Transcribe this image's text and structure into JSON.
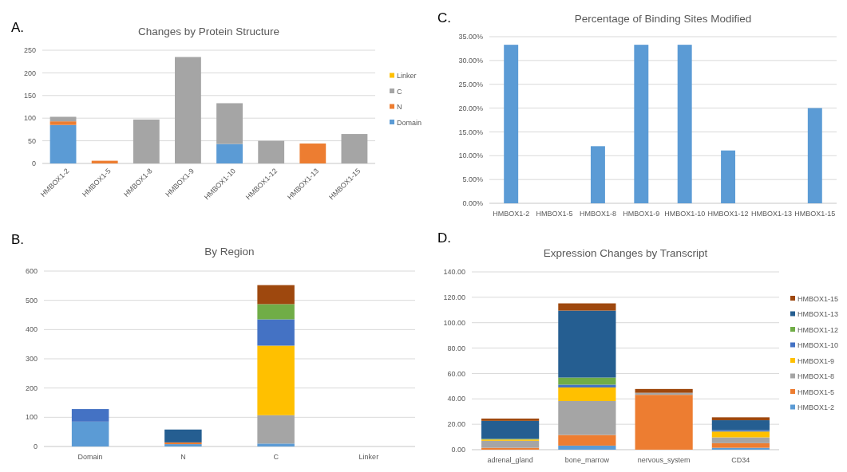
{
  "chart_data": [
    {
      "type": "bar",
      "title": "Changes by Protein Structure",
      "annotations": [
        "A."
      ],
      "stacked": true,
      "grid": "y",
      "legend": "right",
      "categories": [
        "HMBOX1-2",
        "HMBOX1-5",
        "HMBOX1-8",
        "HMBOX1-9",
        "HMBOX1-10",
        "HMBOX1-12",
        "HMBOX1-13",
        "HMBOX1-15"
      ],
      "ylim": [
        0,
        250
      ],
      "yticks": [
        0,
        50,
        100,
        150,
        200,
        250
      ],
      "series": [
        {
          "name": "Domain",
          "color": "#5b9bd5",
          "values": [
            85,
            0,
            0,
            0,
            43,
            0,
            0,
            0
          ]
        },
        {
          "name": "N",
          "color": "#ed7d31",
          "values": [
            8,
            6,
            0,
            0,
            0,
            0,
            44,
            0
          ]
        },
        {
          "name": "C",
          "color": "#a5a5a5",
          "values": [
            10,
            0,
            97,
            235,
            90,
            50,
            0,
            65
          ]
        },
        {
          "name": "Linker",
          "color": "#ffc000",
          "values": [
            0,
            0,
            0,
            0,
            0,
            0,
            0,
            0
          ]
        }
      ]
    },
    {
      "type": "bar",
      "title": "By Region",
      "annotations": [
        "B."
      ],
      "stacked": true,
      "grid": "y",
      "categories": [
        "Domain",
        "N",
        "C",
        "Linker"
      ],
      "ylim": [
        0,
        600
      ],
      "yticks": [
        0,
        100,
        200,
        300,
        400,
        500,
        600
      ],
      "series": [
        {
          "color": "#5b9bd5",
          "values": [
            85,
            8,
            10,
            0
          ]
        },
        {
          "color": "#ed7d31",
          "values": [
            0,
            6,
            0,
            0
          ]
        },
        {
          "color": "#a5a5a5",
          "values": [
            0,
            0,
            97,
            0
          ]
        },
        {
          "color": "#ffc000",
          "values": [
            0,
            0,
            238,
            0
          ]
        },
        {
          "color": "#4472c4",
          "values": [
            43,
            0,
            90,
            0
          ]
        },
        {
          "color": "#70ad47",
          "values": [
            0,
            0,
            52,
            0
          ]
        },
        {
          "color": "#255e91",
          "values": [
            0,
            44,
            0,
            0
          ]
        },
        {
          "color": "#9e480e",
          "values": [
            0,
            0,
            65,
            0
          ]
        }
      ]
    },
    {
      "type": "bar",
      "title": "Percentage of Binding Sites Modified",
      "annotations": [
        "C."
      ],
      "grid": "y",
      "categories": [
        "HMBOX1-2",
        "HMBOX1-5",
        "HMBOX1-8",
        "HMBOX1-9",
        "HMBOX1-10",
        "HMBOX1-12",
        "HMBOX1-13",
        "HMBOX1-15"
      ],
      "values": [
        33.3,
        0,
        12,
        33.3,
        33.3,
        11.1,
        0,
        20
      ],
      "color": "#5b9bd5",
      "ylim": [
        0,
        35
      ],
      "yticks": [
        {
          "value": 0,
          "label": "0.00%"
        },
        {
          "value": 5,
          "label": "5.00%"
        },
        {
          "value": 10,
          "label": "10.00%"
        },
        {
          "value": 15,
          "label": "15.00%"
        },
        {
          "value": 20,
          "label": "20.00%"
        },
        {
          "value": 25,
          "label": "25.00%"
        },
        {
          "value": 30,
          "label": "30.00%"
        },
        {
          "value": 35,
          "label": "35.00%"
        }
      ]
    },
    {
      "type": "bar",
      "title": "Expression Changes by Transcript",
      "annotations": [
        "D."
      ],
      "stacked": true,
      "grid": "y",
      "legend": "right",
      "categories": [
        "adrenal_gland",
        "bone_marrow",
        "nervous_system",
        "CD34"
      ],
      "ylim": [
        0,
        140
      ],
      "yticks": [
        {
          "value": 0,
          "label": "0.00"
        },
        {
          "value": 20,
          "label": "20.00"
        },
        {
          "value": 40,
          "label": "40.00"
        },
        {
          "value": 60,
          "label": "60.00"
        },
        {
          "value": 80,
          "label": "80.00"
        },
        {
          "value": 100,
          "label": "100.00"
        },
        {
          "value": 120,
          "label": "120.00"
        },
        {
          "value": 140,
          "label": "140.00"
        }
      ],
      "series": [
        {
          "name": "HMBOX1-2",
          "color": "#5b9bd5",
          "values": [
            0,
            3.2,
            0,
            1.5
          ]
        },
        {
          "name": "HMBOX1-5",
          "color": "#ed7d31",
          "values": [
            1.5,
            8.4,
            43.2,
            3.6
          ]
        },
        {
          "name": "HMBOX1-8",
          "color": "#a5a5a5",
          "values": [
            5.5,
            26.7,
            1.6,
            4.6
          ]
        },
        {
          "name": "HMBOX1-9",
          "color": "#ffc000",
          "values": [
            1,
            10.7,
            0,
            4.6
          ]
        },
        {
          "name": "HMBOX1-10",
          "color": "#4472c4",
          "values": [
            0,
            2.2,
            0,
            1.1
          ]
        },
        {
          "name": "HMBOX1-12",
          "color": "#70ad47",
          "values": [
            0.5,
            5.6,
            0,
            0
          ]
        },
        {
          "name": "HMBOX1-13",
          "color": "#255e91",
          "values": [
            14.2,
            52.7,
            0,
            7.8
          ]
        },
        {
          "name": "HMBOX1-15",
          "color": "#9e480e",
          "values": [
            1.8,
            5.7,
            3,
            2.3
          ]
        }
      ]
    }
  ]
}
